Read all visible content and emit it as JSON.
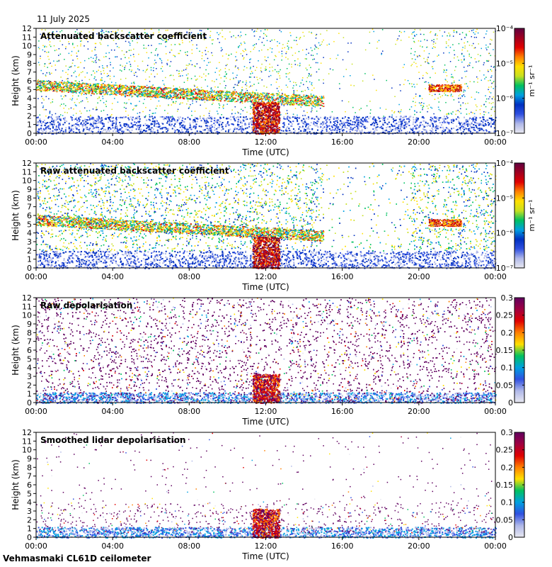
{
  "date": "11 July 2025",
  "footer": "Vehmasmaki CL61D ceilometer",
  "colors": {
    "backscatter_scale": [
      "#e8e8f0",
      "#b0b8e8",
      "#3050e0",
      "#0030c0",
      "#00a0e0",
      "#00c060",
      "#c8e020",
      "#ffe000",
      "#ff8000",
      "#e00000",
      "#a00020",
      "#600040"
    ],
    "depol_scale": [
      "#e8e8f0",
      "#b0b8e8",
      "#3050e0",
      "#00a0e0",
      "#00c060",
      "#ffe000",
      "#ff8000",
      "#e00000",
      "#a00040",
      "#600060"
    ]
  },
  "chart_data": [
    {
      "type": "heatmap",
      "title": "Attenuated backscatter coefficient",
      "xlabel": "Time (UTC)",
      "ylabel": "Height (km)",
      "x_ticks": [
        "00:00",
        "04:00",
        "08:00",
        "12:00",
        "16:00",
        "20:00",
        "00:00"
      ],
      "y_ticks": [
        "0",
        "1",
        "2",
        "3",
        "4",
        "5",
        "6",
        "7",
        "8",
        "9",
        "10",
        "11",
        "12"
      ],
      "ylim": [
        0,
        12
      ],
      "colorbar": {
        "log": true,
        "unit": "m⁻¹ sr⁻¹",
        "tick_labels": [
          "10⁻⁷",
          "10⁻⁶",
          "10⁻⁵",
          "10⁻⁴"
        ],
        "range": [
          1e-07,
          0.0001
        ]
      }
    },
    {
      "type": "heatmap",
      "title": "Raw attenuated backscatter coefficient",
      "xlabel": "Time (UTC)",
      "ylabel": "Height (km)",
      "x_ticks": [
        "00:00",
        "04:00",
        "08:00",
        "12:00",
        "16:00",
        "20:00",
        "00:00"
      ],
      "y_ticks": [
        "0",
        "1",
        "2",
        "3",
        "4",
        "5",
        "6",
        "7",
        "8",
        "9",
        "10",
        "11",
        "12"
      ],
      "ylim": [
        0,
        12
      ],
      "colorbar": {
        "log": true,
        "unit": "m⁻¹ sr⁻¹",
        "tick_labels": [
          "10⁻⁷",
          "10⁻⁶",
          "10⁻⁵",
          "10⁻⁴"
        ],
        "range": [
          1e-07,
          0.0001
        ]
      }
    },
    {
      "type": "heatmap",
      "title": "Raw depolarisation",
      "xlabel": "Time (UTC)",
      "ylabel": "Height (km)",
      "x_ticks": [
        "00:00",
        "04:00",
        "08:00",
        "12:00",
        "16:00",
        "20:00",
        "00:00"
      ],
      "y_ticks": [
        "0",
        "1",
        "2",
        "3",
        "4",
        "5",
        "6",
        "7",
        "8",
        "9",
        "10",
        "11",
        "12"
      ],
      "ylim": [
        0,
        12
      ],
      "colorbar": {
        "log": false,
        "unit": "",
        "tick_labels": [
          "0",
          "0.05",
          "0.1",
          "0.15",
          "0.2",
          "0.25",
          "0.3"
        ],
        "range": [
          0,
          0.3
        ]
      }
    },
    {
      "type": "heatmap",
      "title": "Smoothed lidar depolarisation",
      "xlabel": "Time (UTC)",
      "ylabel": "Height (km)",
      "x_ticks": [
        "00:00",
        "04:00",
        "08:00",
        "12:00",
        "16:00",
        "20:00",
        "00:00"
      ],
      "y_ticks": [
        "0",
        "1",
        "2",
        "3",
        "4",
        "5",
        "6",
        "7",
        "8",
        "9",
        "10",
        "11",
        "12"
      ],
      "ylim": [
        0,
        12
      ],
      "colorbar": {
        "log": false,
        "unit": "",
        "tick_labels": [
          "0",
          "0.05",
          "0.1",
          "0.15",
          "0.2",
          "0.25",
          "0.3"
        ],
        "range": [
          0,
          0.3
        ]
      }
    }
  ]
}
